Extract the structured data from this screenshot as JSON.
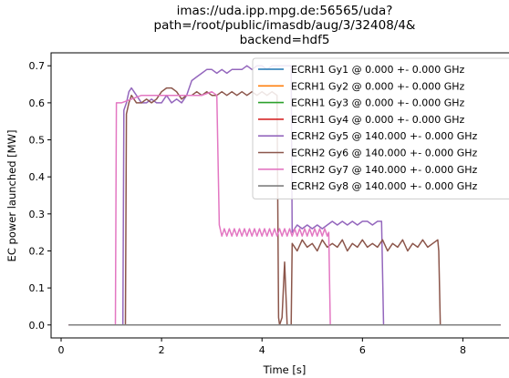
{
  "title_lines": [
    "imas://uda.ipp.mpg.de:56565/uda?",
    "path=/root/public/imasdb/aug/3/32408/4&",
    "backend=hdf5"
  ],
  "chart_data": {
    "type": "line",
    "xlabel": "Time [s]",
    "ylabel": "EC power launched [MW]",
    "xlim": [
      -0.2,
      9.1
    ],
    "ylim": [
      -0.035,
      0.735
    ],
    "xticks": [
      0,
      2,
      4,
      6,
      8
    ],
    "yticks": [
      0.0,
      0.1,
      0.2,
      0.3,
      0.4,
      0.5,
      0.6,
      0.7
    ],
    "legend_position": "upper right",
    "grid": false,
    "series": [
      {
        "name": "ECRH1 Gy1 @ 0.000 +- 0.000 GHz",
        "color": "#1f77b4",
        "x": [
          0.15,
          8.75
        ],
        "y": [
          0,
          0
        ]
      },
      {
        "name": "ECRH1 Gy2 @ 0.000 +- 0.000 GHz",
        "color": "#ff7f0e",
        "x": [
          0.15,
          8.75
        ],
        "y": [
          0,
          0
        ]
      },
      {
        "name": "ECRH1 Gy3 @ 0.000 +- 0.000 GHz",
        "color": "#2ca02c",
        "x": [
          0.15,
          8.75
        ],
        "y": [
          0,
          0
        ]
      },
      {
        "name": "ECRH1 Gy4 @ 0.000 +- 0.000 GHz",
        "color": "#d62728",
        "x": [
          0.15,
          8.75
        ],
        "y": [
          0,
          0
        ]
      },
      {
        "name": "ECRH2 Gy5 @ 140.000 +- 0.000 GHz",
        "color": "#9467bd",
        "x": [
          0.15,
          1.23,
          1.25,
          1.3,
          1.35,
          1.4,
          1.5,
          1.6,
          1.7,
          1.8,
          1.9,
          2.0,
          2.1,
          2.2,
          2.3,
          2.4,
          2.5,
          2.6,
          2.7,
          2.8,
          2.9,
          3.0,
          3.1,
          3.2,
          3.3,
          3.4,
          3.5,
          3.6,
          3.7,
          3.8,
          3.9,
          4.0,
          4.1,
          4.2,
          4.3,
          4.4,
          4.5,
          4.58,
          4.6,
          4.65,
          4.7,
          4.8,
          4.9,
          5.0,
          5.1,
          5.2,
          5.3,
          5.4,
          5.5,
          5.6,
          5.7,
          5.8,
          5.9,
          6.0,
          6.1,
          6.2,
          6.3,
          6.35,
          6.38,
          6.42,
          8.75
        ],
        "y": [
          0,
          0,
          0.58,
          0.6,
          0.63,
          0.64,
          0.62,
          0.6,
          0.6,
          0.61,
          0.6,
          0.6,
          0.62,
          0.6,
          0.61,
          0.6,
          0.62,
          0.66,
          0.67,
          0.68,
          0.69,
          0.69,
          0.68,
          0.69,
          0.68,
          0.69,
          0.69,
          0.69,
          0.7,
          0.69,
          0.7,
          0.7,
          0.69,
          0.7,
          0.7,
          0.7,
          0.7,
          0.7,
          0.25,
          0.26,
          0.27,
          0.26,
          0.27,
          0.26,
          0.27,
          0.26,
          0.27,
          0.28,
          0.27,
          0.28,
          0.27,
          0.28,
          0.27,
          0.28,
          0.28,
          0.27,
          0.28,
          0.28,
          0.28,
          0,
          0
        ]
      },
      {
        "name": "ECRH2 Gy6 @ 140.000 +- 0.000 GHz",
        "color": "#8c564b",
        "x": [
          0.15,
          1.28,
          1.3,
          1.35,
          1.4,
          1.5,
          1.6,
          1.7,
          1.8,
          1.9,
          2.0,
          2.1,
          2.2,
          2.3,
          2.4,
          2.5,
          2.6,
          2.7,
          2.8,
          2.9,
          3.0,
          3.1,
          3.2,
          3.3,
          3.4,
          3.5,
          3.6,
          3.7,
          3.8,
          3.9,
          4.0,
          4.1,
          4.2,
          4.3,
          4.33,
          4.35,
          4.4,
          4.45,
          4.5,
          4.58,
          4.6,
          4.7,
          4.8,
          4.9,
          5.0,
          5.1,
          5.2,
          5.3,
          5.4,
          5.5,
          5.6,
          5.7,
          5.8,
          5.9,
          6.0,
          6.1,
          6.2,
          6.3,
          6.4,
          6.5,
          6.6,
          6.7,
          6.8,
          6.9,
          7.0,
          7.1,
          7.2,
          7.3,
          7.4,
          7.5,
          7.52,
          7.55,
          8.75
        ],
        "y": [
          0,
          0,
          0.57,
          0.6,
          0.62,
          0.6,
          0.6,
          0.61,
          0.6,
          0.61,
          0.63,
          0.64,
          0.64,
          0.63,
          0.61,
          0.62,
          0.62,
          0.63,
          0.62,
          0.63,
          0.62,
          0.62,
          0.63,
          0.62,
          0.63,
          0.62,
          0.63,
          0.62,
          0.63,
          0.62,
          0.63,
          0.62,
          0.63,
          0.62,
          0.02,
          0.0,
          0.02,
          0.17,
          0.0,
          0.0,
          0.22,
          0.2,
          0.23,
          0.21,
          0.22,
          0.2,
          0.23,
          0.21,
          0.22,
          0.21,
          0.23,
          0.2,
          0.22,
          0.21,
          0.23,
          0.21,
          0.22,
          0.21,
          0.23,
          0.2,
          0.22,
          0.21,
          0.23,
          0.2,
          0.22,
          0.21,
          0.23,
          0.21,
          0.22,
          0.23,
          0.2,
          0,
          0
        ]
      },
      {
        "name": "ECRH2 Gy7 @ 140.000 +- 0.000 GHz",
        "color": "#e377c2",
        "x": [
          0.15,
          1.08,
          1.1,
          1.2,
          1.4,
          1.6,
          1.8,
          2.0,
          2.2,
          2.4,
          2.6,
          2.8,
          3.0,
          3.1,
          3.15,
          3.2,
          3.25,
          3.3,
          3.35,
          3.4,
          3.45,
          3.5,
          3.55,
          3.6,
          3.65,
          3.7,
          3.75,
          3.8,
          3.85,
          3.9,
          3.95,
          4.0,
          4.05,
          4.1,
          4.15,
          4.2,
          4.25,
          4.3,
          4.35,
          4.4,
          4.45,
          4.5,
          4.55,
          4.6,
          4.65,
          4.7,
          4.75,
          4.8,
          4.85,
          4.9,
          4.95,
          5.0,
          5.05,
          5.1,
          5.15,
          5.2,
          5.25,
          5.3,
          5.33,
          5.36,
          8.75
        ],
        "y": [
          0,
          0,
          0.6,
          0.6,
          0.61,
          0.62,
          0.62,
          0.62,
          0.62,
          0.62,
          0.62,
          0.62,
          0.63,
          0.62,
          0.27,
          0.24,
          0.26,
          0.24,
          0.26,
          0.24,
          0.26,
          0.24,
          0.26,
          0.24,
          0.26,
          0.24,
          0.26,
          0.24,
          0.26,
          0.24,
          0.26,
          0.24,
          0.26,
          0.24,
          0.26,
          0.24,
          0.26,
          0.24,
          0.26,
          0.24,
          0.26,
          0.24,
          0.26,
          0.24,
          0.26,
          0.24,
          0.26,
          0.24,
          0.26,
          0.24,
          0.26,
          0.24,
          0.26,
          0.24,
          0.26,
          0.24,
          0.26,
          0.24,
          0.25,
          0,
          0
        ]
      },
      {
        "name": "ECRH2 Gy8 @ 140.000 +- 0.000 GHz",
        "color": "#7f7f7f",
        "x": [
          0.15,
          8.75
        ],
        "y": [
          0,
          0
        ]
      }
    ]
  }
}
